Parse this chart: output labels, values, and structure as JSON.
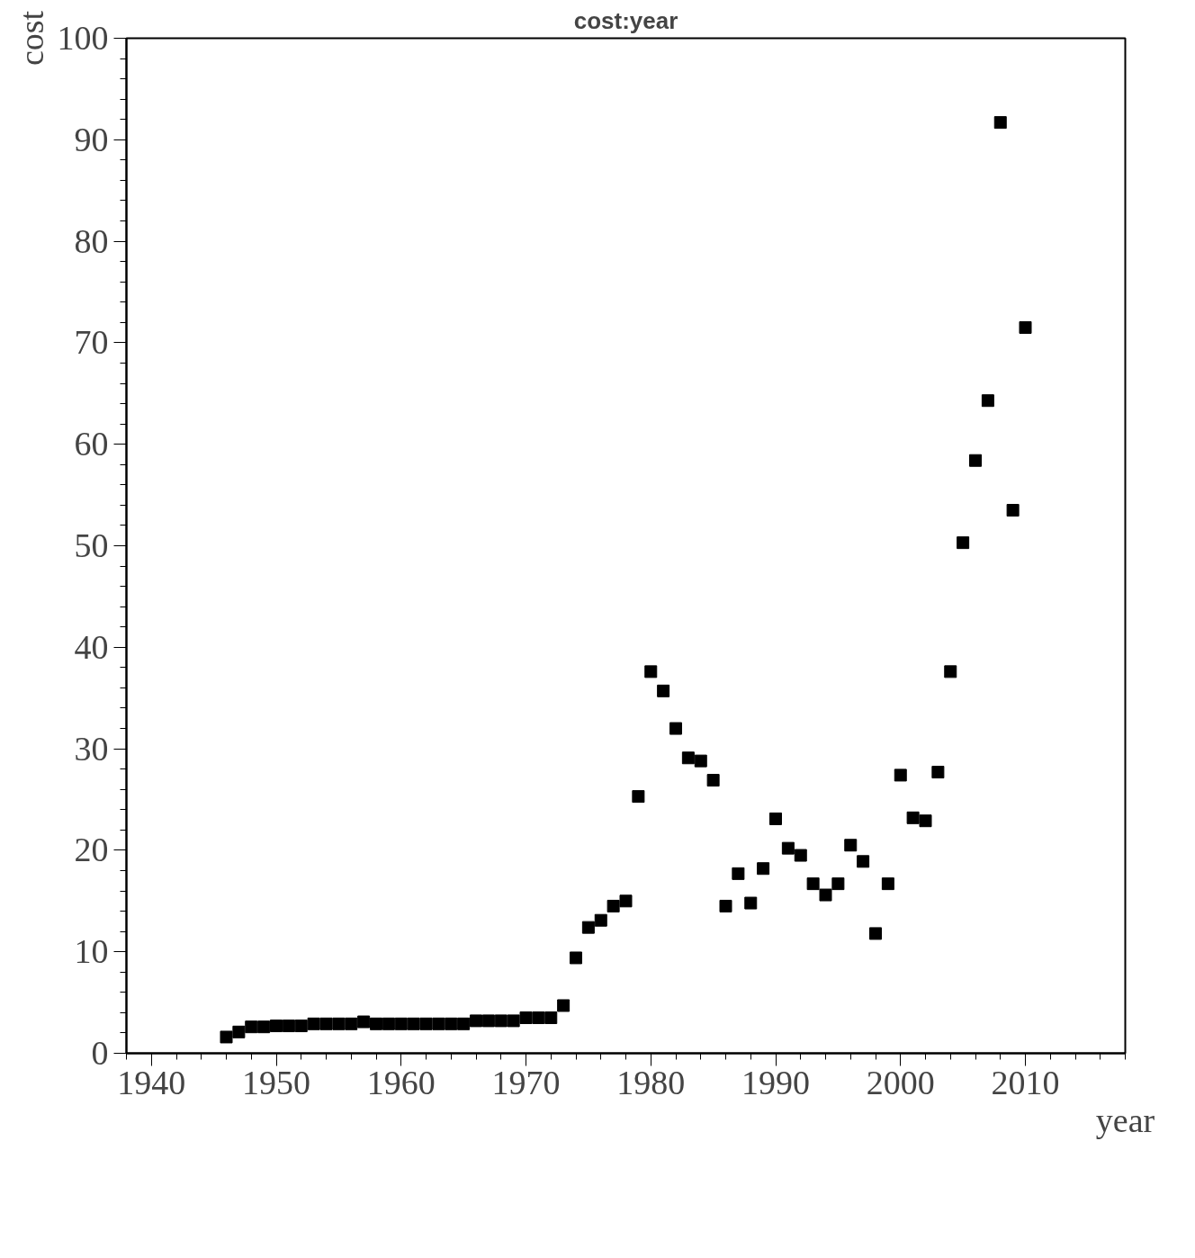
{
  "chart_data": {
    "type": "scatter",
    "title": "cost:year",
    "xlabel": "year",
    "ylabel": "cost",
    "x": [
      1946,
      1947,
      1948,
      1949,
      1950,
      1951,
      1952,
      1953,
      1954,
      1955,
      1956,
      1957,
      1958,
      1959,
      1960,
      1961,
      1962,
      1963,
      1964,
      1965,
      1966,
      1967,
      1968,
      1969,
      1970,
      1971,
      1972,
      1973,
      1974,
      1975,
      1976,
      1977,
      1978,
      1979,
      1980,
      1981,
      1982,
      1983,
      1984,
      1985,
      1986,
      1987,
      1988,
      1989,
      1990,
      1991,
      1992,
      1993,
      1994,
      1995,
      1996,
      1997,
      1998,
      1999,
      2000,
      2001,
      2002,
      2003,
      2004,
      2005,
      2006,
      2007,
      2008,
      2009,
      2010
    ],
    "series": [
      {
        "color": "#000000",
        "values": [
          1.6,
          2.1,
          2.6,
          2.6,
          2.7,
          2.7,
          2.7,
          2.9,
          2.9,
          2.9,
          2.9,
          3.1,
          2.9,
          2.9,
          2.9,
          2.9,
          2.9,
          2.9,
          2.9,
          2.9,
          3.2,
          3.2,
          3.2,
          3.2,
          3.5,
          3.5,
          3.5,
          4.7,
          9.4,
          12.4,
          13.1,
          14.5,
          15.0,
          25.3,
          37.6,
          35.7,
          32.0,
          29.1,
          28.8,
          26.9,
          14.5,
          17.7,
          14.8,
          18.2,
          23.1,
          20.2,
          19.5,
          16.7,
          15.6,
          16.7,
          20.5,
          18.9,
          11.8,
          16.7,
          27.4,
          23.2,
          22.9,
          27.7,
          37.6,
          50.3,
          58.4,
          64.3,
          91.7,
          53.5,
          71.5
        ]
      }
    ],
    "xlim": [
      1938,
      2018
    ],
    "ylim": [
      0,
      100
    ],
    "xticks": [
      1940,
      1950,
      1960,
      1970,
      1980,
      1990,
      2000,
      2010
    ],
    "yticks": [
      0,
      10,
      20,
      30,
      40,
      50,
      60,
      70,
      80,
      90,
      100
    ],
    "grid": false,
    "marker": "square"
  }
}
